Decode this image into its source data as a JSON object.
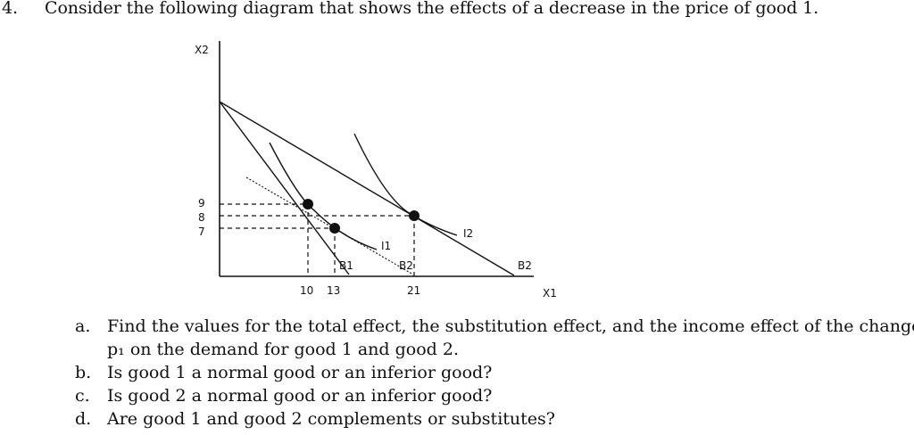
{
  "question": {
    "number": "4.",
    "text": "Consider the following diagram that shows the effects of a decrease in the price of good 1."
  },
  "diagram": {
    "y_axis_label": "X2",
    "x_axis_label": "X1",
    "y_ticks": [
      "9",
      "8",
      "7"
    ],
    "x_ticks": [
      "10",
      "13",
      "21"
    ],
    "curve_labels": {
      "indifference_1": "I1",
      "indifference_2": "I2",
      "budget_1": "B1",
      "budget_2_dashed": "B2",
      "budget_2": "B2"
    }
  },
  "subquestions": [
    {
      "letter": "a.",
      "line1": "Find the values for the total effect, the substitution effect, and the income effect of the change in",
      "line2": "p₁ on the demand for good 1 and good 2."
    },
    {
      "letter": "b.",
      "line1": "Is good 1 a normal good or an inferior good?"
    },
    {
      "letter": "c.",
      "line1": "Is good 2 a normal good or an inferior good?"
    },
    {
      "letter": "d.",
      "line1": "Are good 1 and good 2 complements or substitutes?"
    }
  ]
}
